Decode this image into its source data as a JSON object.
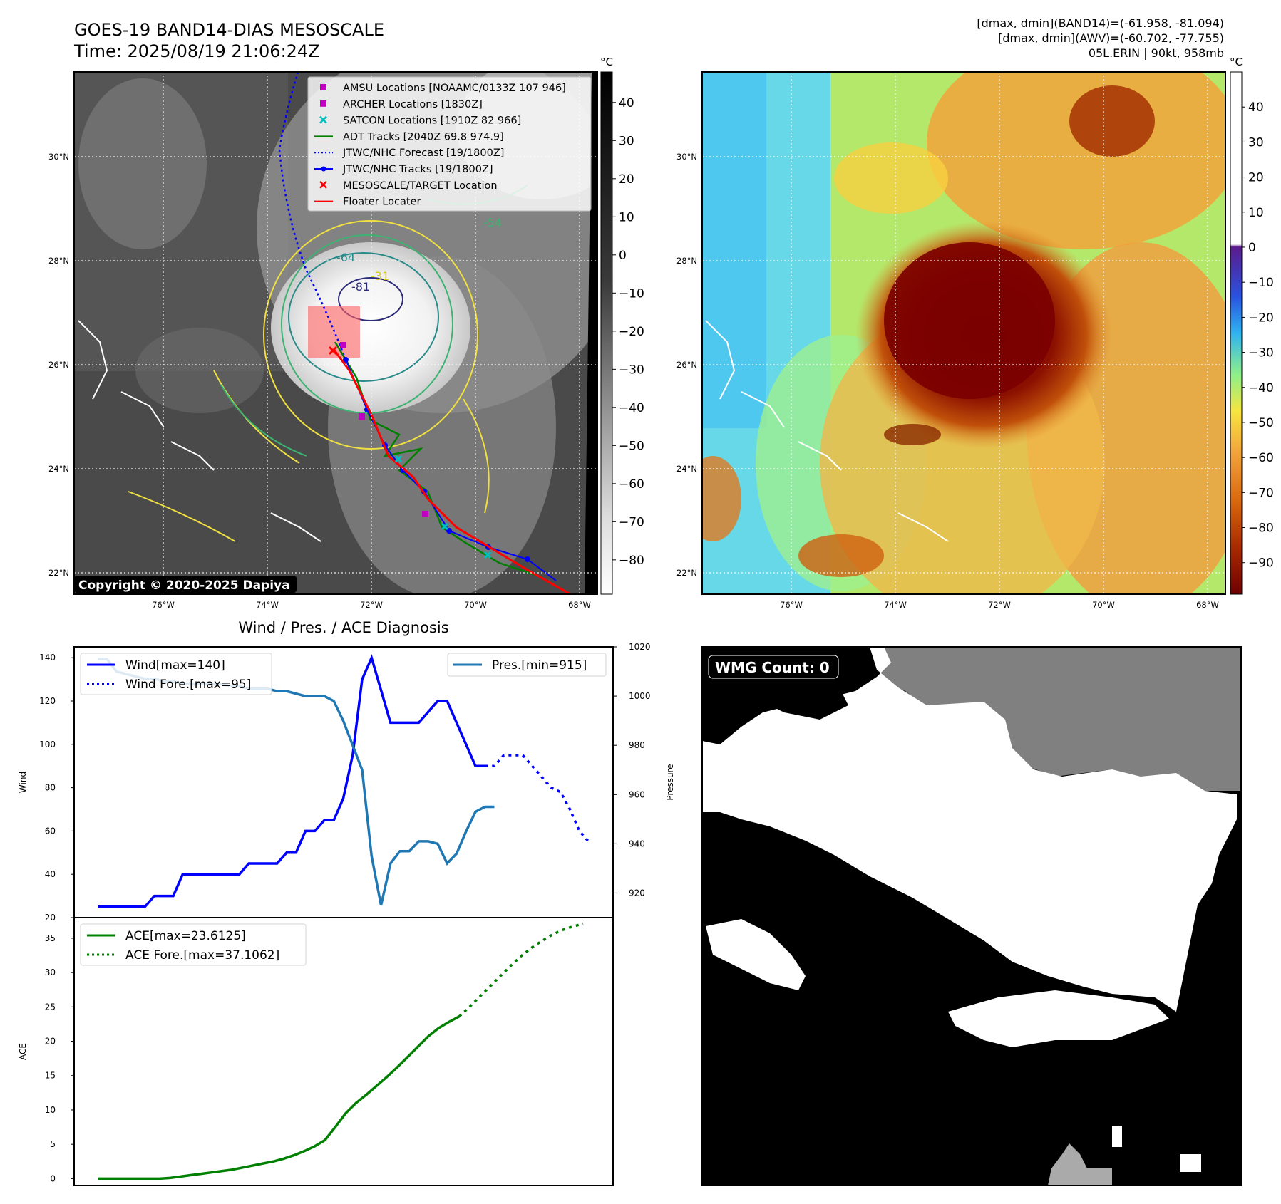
{
  "header": {
    "title_line1": "GOES-19 BAND14-DIAS MESOSCALE",
    "title_line2": "Time: 2025/08/19 21:06:24Z",
    "info_line1": "[dmax, dmin](BAND14)=(-61.958, -81.094)",
    "info_line2": "[dmax, dmin](AWV)=(-60.702, -77.755)",
    "info_line3": "05L.ERIN | 90kt, 958mb"
  },
  "map_axes": {
    "lat_labels": [
      "30°N",
      "28°N",
      "26°N",
      "24°N",
      "22°N"
    ],
    "lon_labels": [
      "76°W",
      "74°W",
      "72°W",
      "70°W",
      "68°W"
    ]
  },
  "ir_map": {
    "copyright": "Copyright © 2020-2025 Dapiya",
    "colorbar_unit": "°C",
    "colorbar_ticks": [
      "40",
      "30",
      "20",
      "10",
      "0",
      "−10",
      "−20",
      "−30",
      "−40",
      "−50",
      "−60",
      "−70",
      "−80"
    ],
    "contour_labels": [
      "-81",
      "-64",
      "-54",
      "-31"
    ],
    "legend": [
      {
        "label": "AMSU Locations [NOAAMC/0133Z 107 946]",
        "color": "#c000c0",
        "marker": "square"
      },
      {
        "label": "ARCHER Locations [1830Z]",
        "color": "#c000c0",
        "marker": "square"
      },
      {
        "label": "SATCON Locations [1910Z 82 966]",
        "color": "#00bfbf",
        "marker": "x"
      },
      {
        "label": "ADT Tracks [2040Z 69.8 974.9]",
        "color": "#007f00",
        "marker": "line"
      },
      {
        "label": "JTWC/NHC Forecast [19/1800Z]",
        "color": "#0000ff",
        "marker": "dotted"
      },
      {
        "label": "JTWC/NHC Tracks [19/1800Z]",
        "color": "#0000ff",
        "marker": "line-dot"
      },
      {
        "label": "MESOSCALE/TARGET Location",
        "color": "#ff0000",
        "marker": "x"
      },
      {
        "label": "Floater Locater",
        "color": "#ff0000",
        "marker": "line"
      }
    ]
  },
  "wv_map": {
    "colorbar_unit": "°C",
    "colorbar_ticks": [
      "40",
      "30",
      "20",
      "10",
      "0",
      "−10",
      "−20",
      "−30",
      "−40",
      "−50",
      "−60",
      "−70",
      "−80",
      "−90"
    ]
  },
  "wmg_panel": {
    "badge": "WMG Count: 0"
  },
  "chart_data": [
    {
      "type": "line",
      "title": "Wind / Pres. / ACE Diagnosis",
      "ylabel": "Wind",
      "ylabel_right": "Pressure",
      "ylim": [
        20,
        145
      ],
      "ylim_right": [
        910,
        1020
      ],
      "yticks": [
        "140",
        "120",
        "100",
        "80",
        "60",
        "40",
        "20"
      ],
      "yticks_right": [
        "1020",
        "1000",
        "980",
        "960",
        "940",
        "920"
      ],
      "legend_left": [
        "Wind[max=140]",
        "Wind Fore.[max=95]"
      ],
      "legend_right": [
        "Pres.[min=915]"
      ],
      "series": [
        {
          "name": "Wind[max=140]",
          "color": "#0000ff",
          "style": "solid",
          "axis": "left",
          "values": [
            25,
            25,
            25,
            25,
            25,
            25,
            30,
            30,
            30,
            40,
            40,
            40,
            40,
            40,
            40,
            40,
            45,
            45,
            45,
            45,
            50,
            50,
            60,
            60,
            65,
            65,
            75,
            95,
            130,
            140,
            125,
            110,
            110,
            110,
            110,
            115,
            120,
            120,
            110,
            100,
            90,
            90
          ]
        },
        {
          "name": "Wind Fore.[max=95]",
          "color": "#0000ff",
          "style": "dotted",
          "axis": "left",
          "values": [
            90,
            90,
            95,
            95,
            95,
            90,
            85,
            80,
            78,
            70,
            60,
            55
          ]
        },
        {
          "name": "Pres.[min=915]",
          "color": "#1f77b4",
          "style": "solid",
          "axis": "right",
          "values": [
            1015,
            1015,
            1010,
            1009,
            1008,
            1007,
            1007,
            1006,
            1006,
            1005,
            1005,
            1005,
            1005,
            1005,
            1004,
            1004,
            1003,
            1003,
            1003,
            1002,
            1002,
            1001,
            1000,
            1000,
            1000,
            998,
            990,
            980,
            970,
            935,
            915,
            932,
            937,
            937,
            941,
            941,
            940,
            932,
            936,
            945,
            953,
            955,
            955
          ]
        }
      ]
    },
    {
      "type": "line",
      "ylabel": "ACE",
      "ylim": [
        -1,
        38
      ],
      "yticks": [
        "35",
        "30",
        "25",
        "20",
        "15",
        "10",
        "5",
        "0"
      ],
      "series": [
        {
          "name": "ACE[max=23.6125]",
          "color": "#008000",
          "style": "solid",
          "values": [
            0,
            0,
            0,
            0,
            0,
            0,
            0,
            0.1,
            0.3,
            0.5,
            0.7,
            0.9,
            1.1,
            1.3,
            1.6,
            1.9,
            2.2,
            2.5,
            2.9,
            3.4,
            4.0,
            4.7,
            5.6,
            7.5,
            9.5,
            11.0,
            12.2,
            13.5,
            14.8,
            16.2,
            17.7,
            19.2,
            20.7,
            21.9,
            22.8,
            23.6
          ]
        },
        {
          "name": "ACE Fore.[max=37.1062]",
          "color": "#008000",
          "style": "dotted",
          "values": [
            23.6,
            25.0,
            26.5,
            28.0,
            29.5,
            31.0,
            32.4,
            33.6,
            34.6,
            35.5,
            36.2,
            36.7,
            37.1
          ]
        }
      ]
    }
  ]
}
